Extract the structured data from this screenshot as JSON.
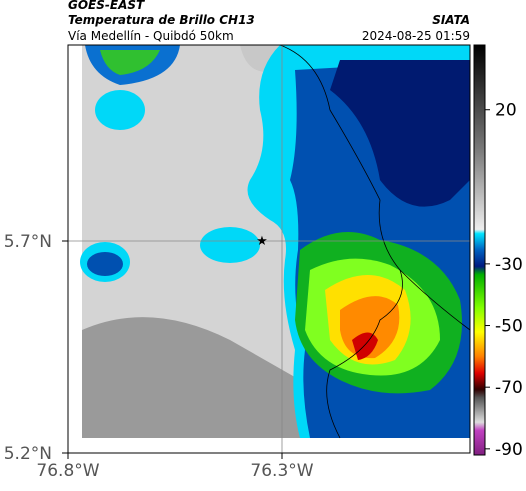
{
  "header": {
    "source": "GOES-EAST",
    "title": "Temperatura de Brillo CH13",
    "org": "SIATA",
    "subtitle": "Vía Medellín - Quibdó 50km",
    "datetime": "2024-08-25 01:59"
  },
  "map": {
    "lat_ticks": [
      {
        "value": 5.7,
        "label": "5.7°N"
      },
      {
        "value": 5.2,
        "label": "5.2°N"
      }
    ],
    "lon_ticks": [
      {
        "value": -76.8,
        "label": "76.8°W"
      },
      {
        "value": -76.3,
        "label": "76.3°W"
      }
    ],
    "colorbar": {
      "range": [
        -92,
        41
      ],
      "ticks": [
        20,
        -30,
        -50,
        -70,
        -90
      ]
    }
  }
}
